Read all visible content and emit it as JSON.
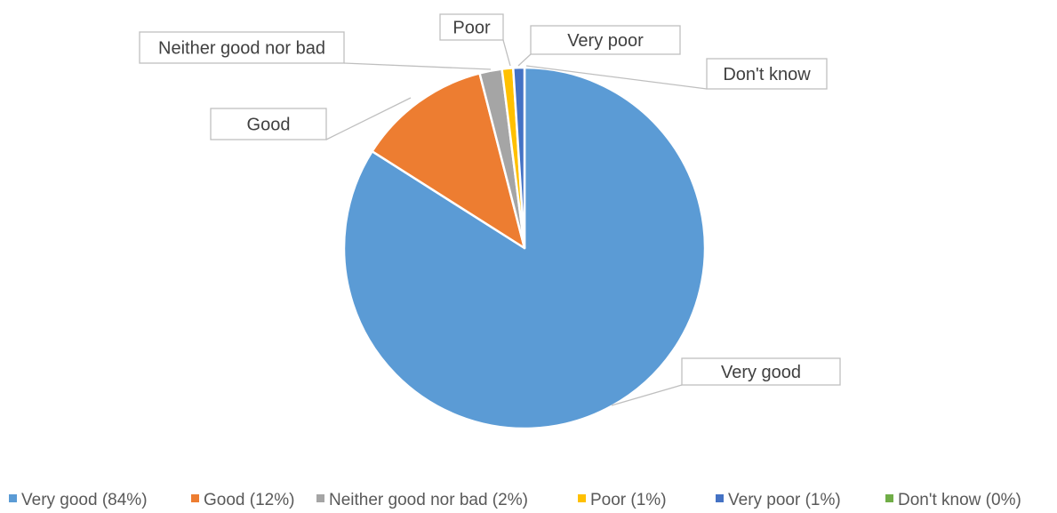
{
  "chart_data": {
    "type": "pie",
    "title": "",
    "series": [
      {
        "slices": [
          {
            "label": "Very good",
            "value": 84,
            "color": "#5B9BD5",
            "legend": "Very good (84%)"
          },
          {
            "label": "Good",
            "value": 12,
            "color": "#ED7D31",
            "legend": "Good (12%)"
          },
          {
            "label": "Neither good nor bad",
            "value": 2,
            "color": "#A5A5A5",
            "legend": "Neither good nor bad (2%)"
          },
          {
            "label": "Poor",
            "value": 1,
            "color": "#FFC000",
            "legend": "Poor (1%)"
          },
          {
            "label": "Very poor",
            "value": 1,
            "color": "#4472C4",
            "legend": "Very poor (1%)"
          },
          {
            "label": "Don't know",
            "value": 0,
            "color": "#70AD47",
            "legend": "Don't know (0%)"
          }
        ]
      }
    ],
    "legend_position": "bottom",
    "start_angle_deg": 0,
    "direction": "clockwise"
  }
}
